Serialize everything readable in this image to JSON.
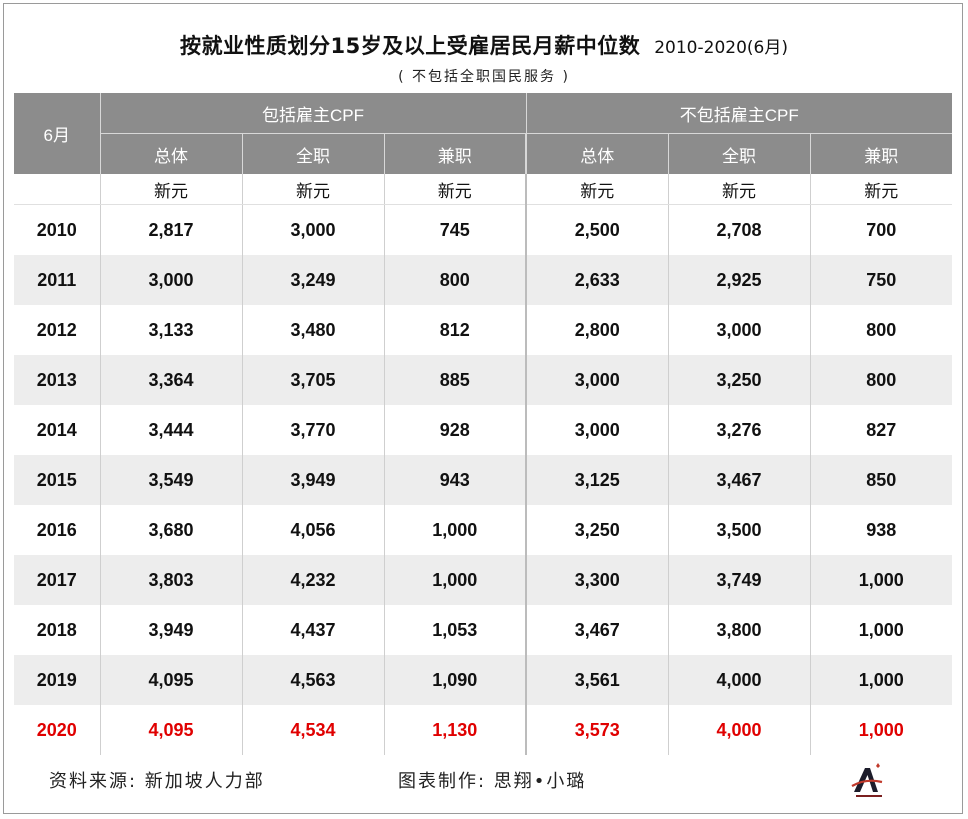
{
  "title": {
    "main": "按就业性质划分15岁及以上受雇居民月薪中位数",
    "range": "2010-2020(6月)",
    "subtitle": "( 不包括全职国民服务 )"
  },
  "table": {
    "corner": "6月",
    "group_include": "包括雇主CPF",
    "group_exclude": "不包括雇主CPF",
    "sub_headers": [
      "总体",
      "全职",
      "兼职",
      "总体",
      "全职",
      "兼职"
    ],
    "units": [
      "新元",
      "新元",
      "新元",
      "新元",
      "新元",
      "新元"
    ],
    "rows": [
      {
        "year": "2010",
        "v": [
          "2,817",
          "3,000",
          "745",
          "2,500",
          "2,708",
          "700"
        ]
      },
      {
        "year": "2011",
        "v": [
          "3,000",
          "3,249",
          "800",
          "2,633",
          "2,925",
          "750"
        ]
      },
      {
        "year": "2012",
        "v": [
          "3,133",
          "3,480",
          "812",
          "2,800",
          "3,000",
          "800"
        ]
      },
      {
        "year": "2013",
        "v": [
          "3,364",
          "3,705",
          "885",
          "3,000",
          "3,250",
          "800"
        ]
      },
      {
        "year": "2014",
        "v": [
          "3,444",
          "3,770",
          "928",
          "3,000",
          "3,276",
          "827"
        ]
      },
      {
        "year": "2015",
        "v": [
          "3,549",
          "3,949",
          "943",
          "3,125",
          "3,467",
          "850"
        ]
      },
      {
        "year": "2016",
        "v": [
          "3,680",
          "4,056",
          "1,000",
          "3,250",
          "3,500",
          "938"
        ]
      },
      {
        "year": "2017",
        "v": [
          "3,803",
          "4,232",
          "1,000",
          "3,300",
          "3,749",
          "1,000"
        ]
      },
      {
        "year": "2018",
        "v": [
          "3,949",
          "4,437",
          "1,053",
          "3,467",
          "3,800",
          "1,000"
        ]
      },
      {
        "year": "2019",
        "v": [
          "4,095",
          "4,563",
          "1,090",
          "3,561",
          "4,000",
          "1,000"
        ]
      },
      {
        "year": "2020",
        "v": [
          "4,095",
          "4,534",
          "1,130",
          "3,573",
          "4,000",
          "1,000"
        ]
      }
    ],
    "highlight_color": "#e00000",
    "header_color": "#8c8c8c"
  },
  "footer": {
    "source": "资料来源: 新加坡人力部",
    "credit": "图表制作: 思翔•小璐"
  },
  "logo": {
    "icon": "a-logo-icon"
  }
}
